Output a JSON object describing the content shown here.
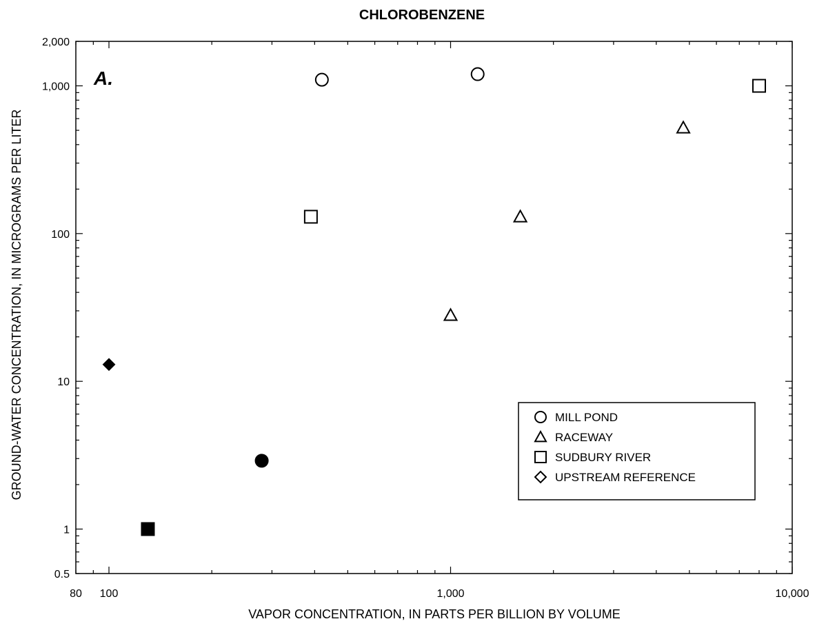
{
  "chart_data": {
    "type": "scatter",
    "title": "CHLOROBENZENE",
    "panel_label": "A.",
    "xlabel": "VAPOR CONCENTRATION, IN PARTS PER BILLION BY VOLUME",
    "ylabel": "GROUND-WATER CONCENTRATION, IN MICROGRAMS PER LITER",
    "x_scale": "log",
    "y_scale": "log",
    "xlim": [
      80,
      10000
    ],
    "ylim": [
      0.5,
      2000
    ],
    "x_tick_labels": [
      {
        "value": 80,
        "label": "80"
      },
      {
        "value": 100,
        "label": "100"
      },
      {
        "value": 1000,
        "label": "1,000"
      },
      {
        "value": 10000,
        "label": "10,000"
      }
    ],
    "y_tick_labels": [
      {
        "value": 0.5,
        "label": "0.5"
      },
      {
        "value": 1,
        "label": "1"
      },
      {
        "value": 10,
        "label": "10"
      },
      {
        "value": 100,
        "label": "100"
      },
      {
        "value": 1000,
        "label": "1,000"
      },
      {
        "value": 2000,
        "label": "2,000"
      }
    ],
    "grid": false,
    "legend_position": "lower-right",
    "series": [
      {
        "name": "MILL POND",
        "marker": "circle",
        "points": [
          {
            "x": 420,
            "y": 1100,
            "filled": false
          },
          {
            "x": 1200,
            "y": 1200,
            "filled": false
          },
          {
            "x": 280,
            "y": 2.9,
            "filled": true
          }
        ]
      },
      {
        "name": "RACEWAY",
        "marker": "triangle",
        "points": [
          {
            "x": 1000,
            "y": 28,
            "filled": false
          },
          {
            "x": 1600,
            "y": 130,
            "filled": false
          },
          {
            "x": 4800,
            "y": 520,
            "filled": false
          }
        ]
      },
      {
        "name": "SUDBURY RIVER",
        "marker": "square",
        "points": [
          {
            "x": 390,
            "y": 130,
            "filled": false
          },
          {
            "x": 8000,
            "y": 1000,
            "filled": false
          },
          {
            "x": 130,
            "y": 1,
            "filled": true
          }
        ]
      },
      {
        "name": "UPSTREAM REFERENCE",
        "marker": "diamond",
        "points": [
          {
            "x": 100,
            "y": 13,
            "filled": true
          }
        ]
      }
    ]
  }
}
